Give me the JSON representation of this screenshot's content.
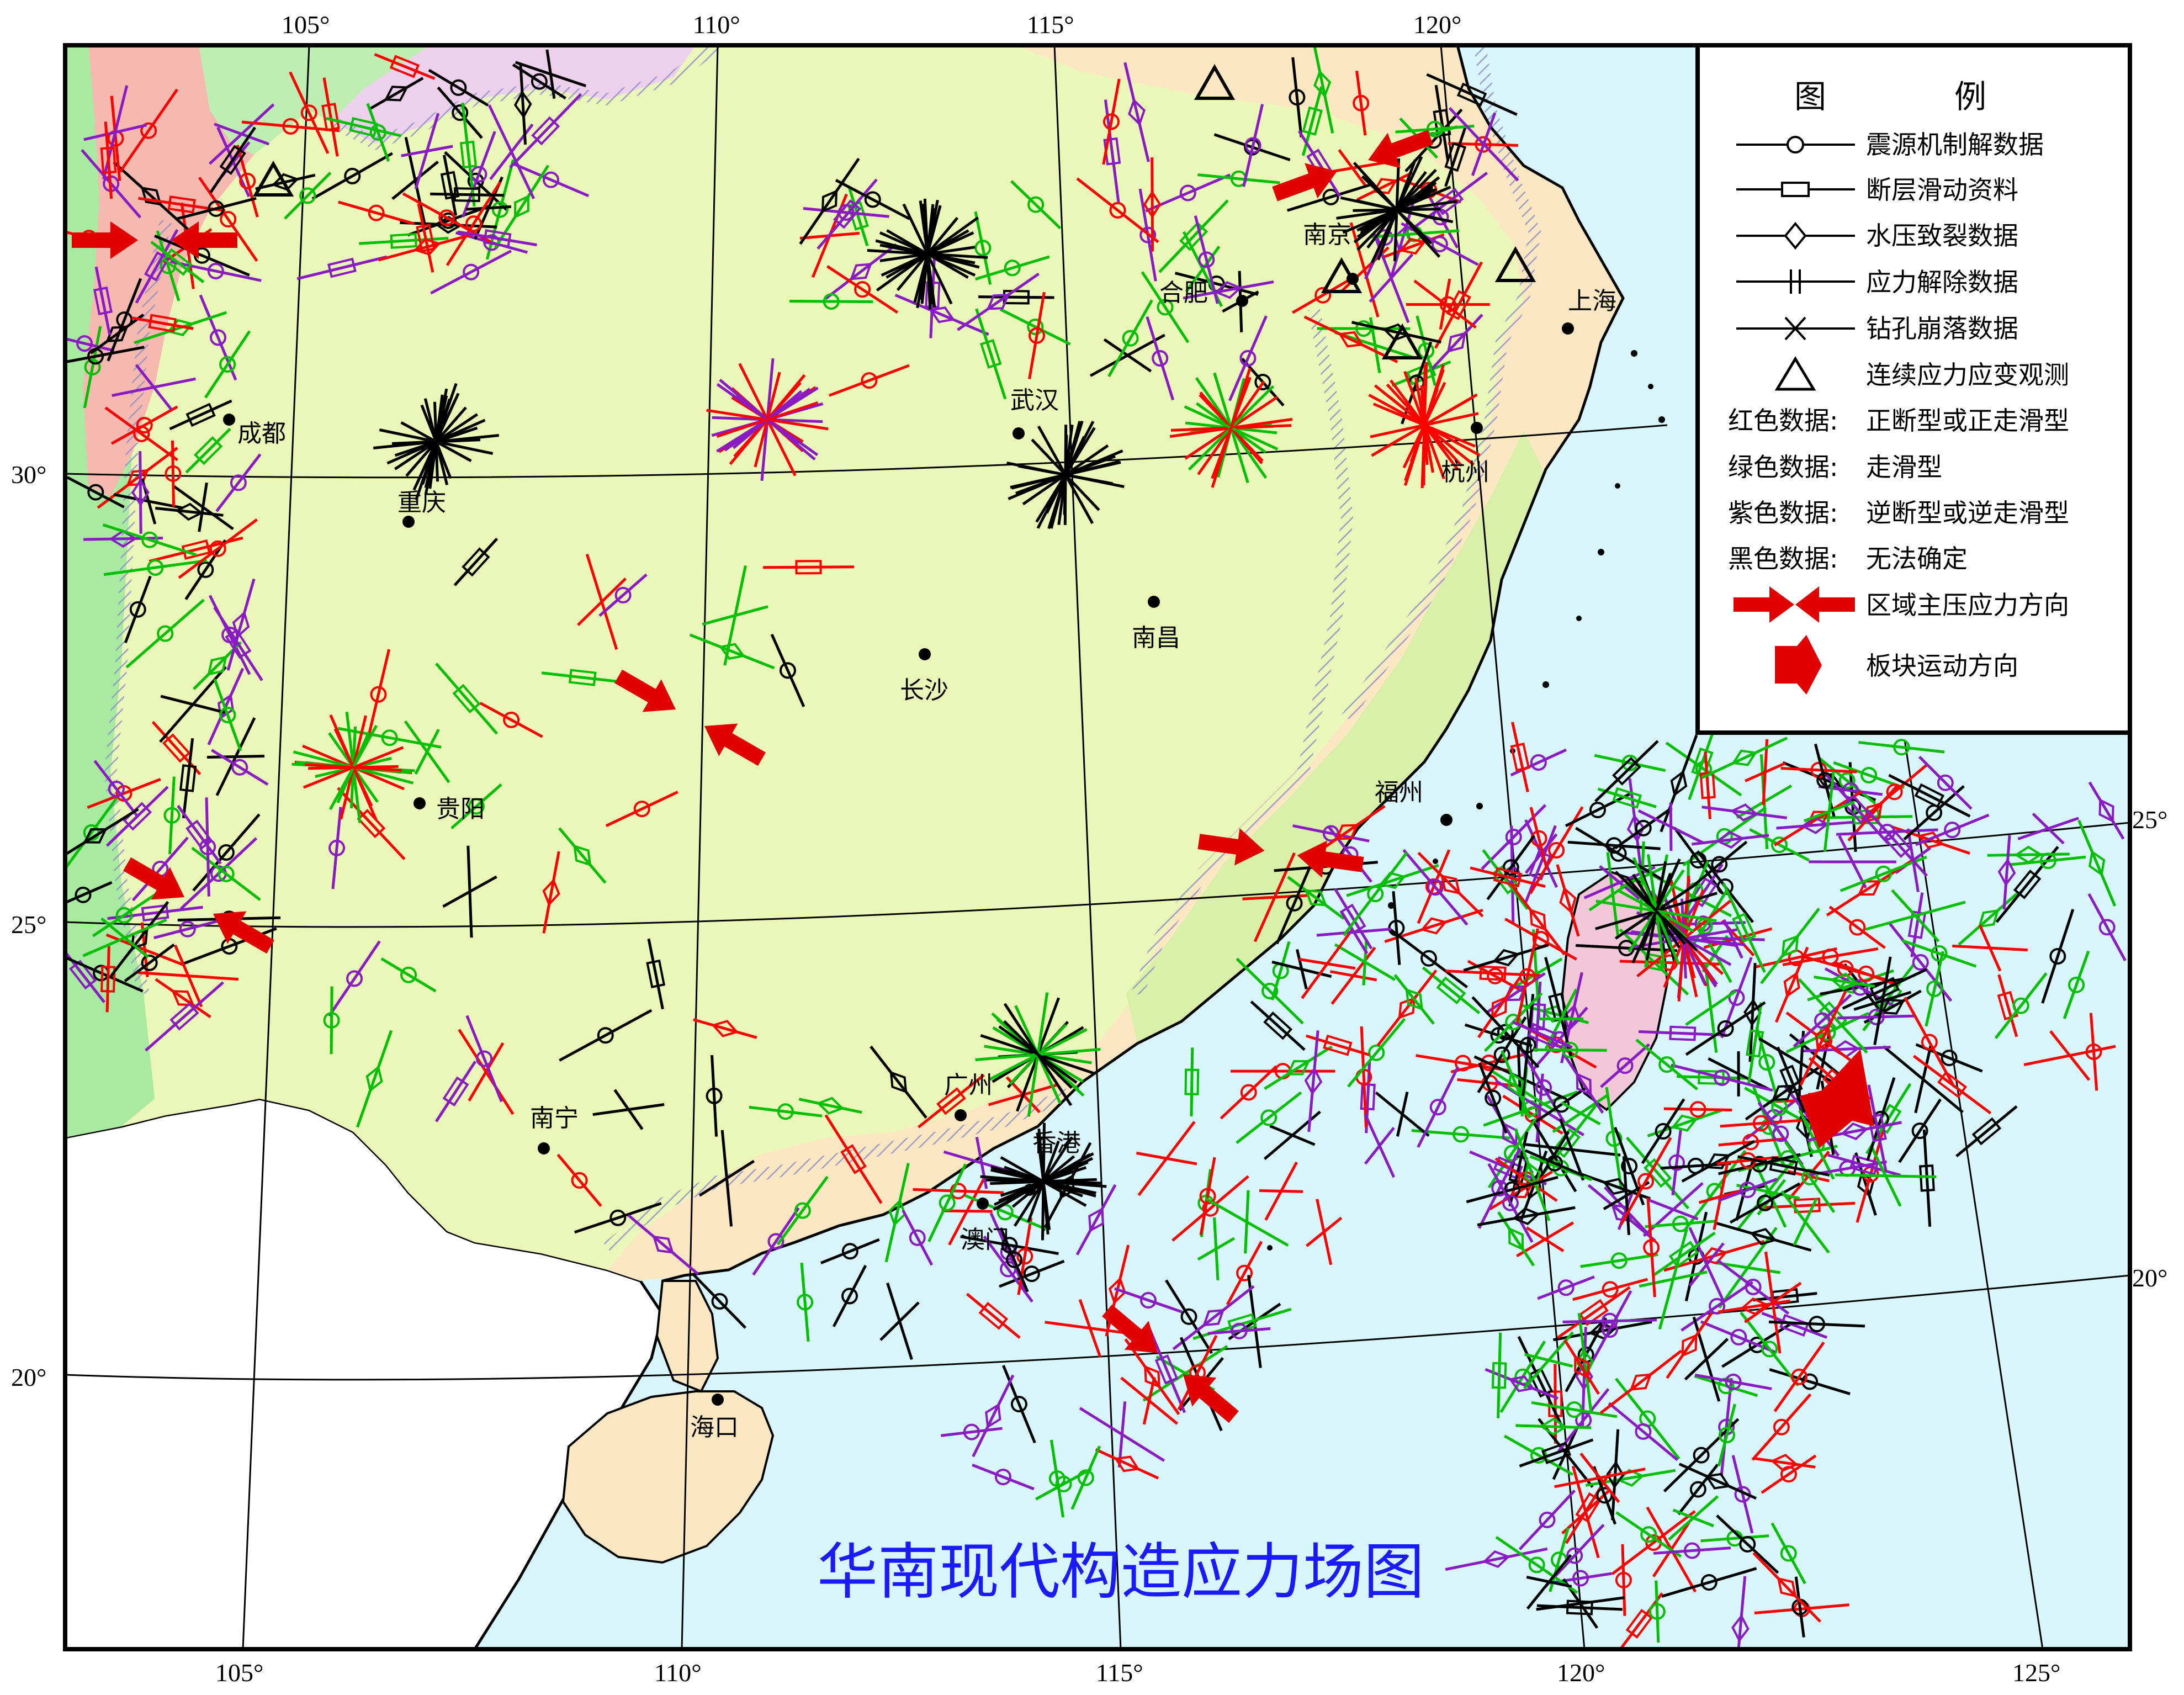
{
  "map": {
    "title": "华南现代构造应力场图",
    "top_ticks": [
      "105°",
      "110°",
      "115°",
      "120°"
    ],
    "bottom_ticks": [
      "105°",
      "110°",
      "115°",
      "120°",
      "125°"
    ],
    "left_ticks": [
      "30°",
      "25°",
      "20°"
    ],
    "right_ticks": [
      "25°",
      "20°"
    ]
  },
  "cities": [
    "成都",
    "重庆",
    "贵阳",
    "南宁",
    "海口",
    "长沙",
    "武汉",
    "南昌",
    "合肥",
    "南京",
    "上海",
    "杭州",
    "福州",
    "广州",
    "香港",
    "澳门"
  ],
  "legend": {
    "title_left": "图",
    "title_right": "例",
    "items": [
      {
        "label": "震源机制解数据",
        "symbol": "circle",
        "color": "#000000"
      },
      {
        "label": "断层滑动资料",
        "symbol": "rect",
        "color": "#000000"
      },
      {
        "label": "水压致裂数据",
        "symbol": "diamond",
        "color": "#000000"
      },
      {
        "label": "应力解除数据",
        "symbol": "bars",
        "color": "#000000"
      },
      {
        "label": "钻孔崩落数据",
        "symbol": "cross",
        "color": "#000000"
      },
      {
        "label": "连续应力应变观测",
        "symbol": "triangle",
        "color": "#000000"
      },
      {
        "key": "红色数据:",
        "label": "正断型或正走滑型",
        "color": "#ff0000"
      },
      {
        "key": "绿色数据:",
        "label": "走滑型",
        "color": "#00c000"
      },
      {
        "key": "紫色数据:",
        "label": "逆断型或逆走滑型",
        "color": "#8a1ac4"
      },
      {
        "key": "黑色数据:",
        "label": "无法确定",
        "color": "#000000"
      },
      {
        "label": "区域主压应力方向",
        "symbol": "compression-arrows",
        "color": "#e00000"
      },
      {
        "label": "板块运动方向",
        "symbol": "plate-arrow",
        "color": "#e00000"
      }
    ]
  },
  "colors": {
    "land": "#eaf7b8",
    "coastal_land": "#fbe8c2",
    "sea": "#d8f6fb",
    "green_zone": "#a8eba0",
    "pink_zone": "#f5b9b0",
    "lilac_zone": "#ecd0ec",
    "red_data": "#ff0000",
    "green_data": "#00c000",
    "purple_data": "#8a1ac4",
    "black_data": "#000000",
    "arrow": "#e00000",
    "title": "#1a1aff"
  }
}
